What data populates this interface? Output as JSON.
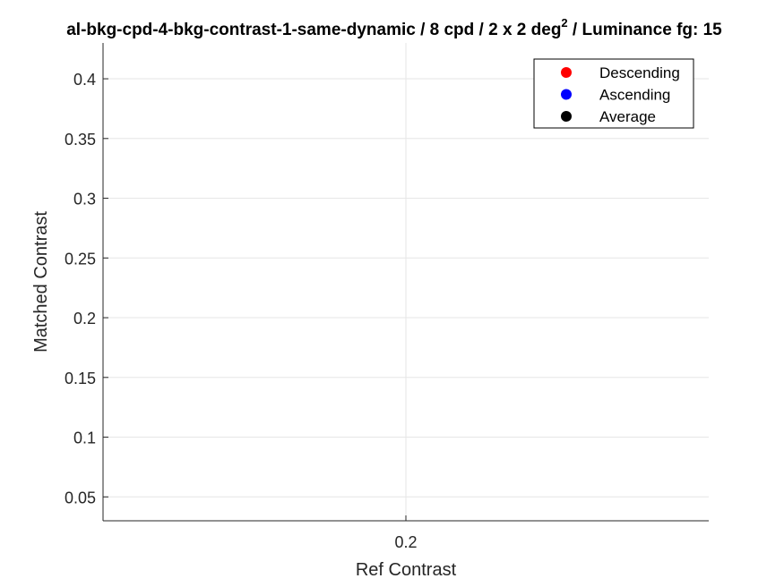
{
  "chart_data": {
    "type": "scatter",
    "title_main": "al-bkg-cpd-4-bkg-contrast-1-same-dynamic / 8 cpd / 2 x 2 deg",
    "title_sup": "2",
    "title_tail": " / Luminance fg: 15",
    "xlabel": "Ref Contrast",
    "ylabel": "Matched Contrast",
    "x_ticks": [
      "0.2"
    ],
    "xlim": [
      0.15,
      0.25
    ],
    "ylim": [
      0.03,
      0.43
    ],
    "y_ticks": [
      0.05,
      0.1,
      0.15,
      0.2,
      0.25,
      0.3,
      0.35,
      0.4
    ],
    "y_tick_labels": [
      "0.05",
      "0.1",
      "0.15",
      "0.2",
      "0.25",
      "0.3",
      "0.35",
      "0.4"
    ],
    "grid": true,
    "legend_position": "top-right",
    "series": [
      {
        "name": "Descending",
        "color": "#ff0000",
        "points": []
      },
      {
        "name": "Ascending",
        "color": "#0000ff",
        "points": []
      },
      {
        "name": "Average",
        "color": "#000000",
        "points": []
      }
    ]
  }
}
